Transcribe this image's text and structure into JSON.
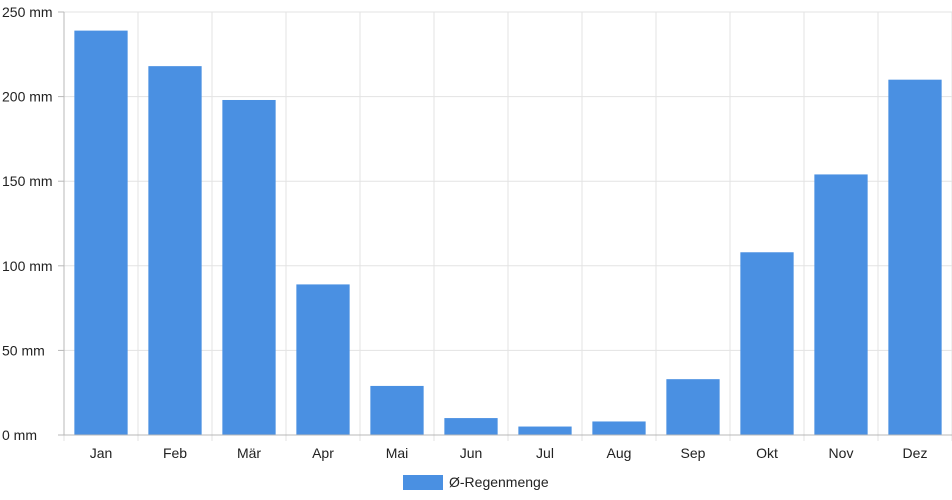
{
  "chart_data": {
    "type": "bar",
    "categories": [
      "Jan",
      "Feb",
      "Mär",
      "Apr",
      "Mai",
      "Jun",
      "Jul",
      "Aug",
      "Sep",
      "Okt",
      "Nov",
      "Dez"
    ],
    "series": [
      {
        "name": "Ø-Regenmenge",
        "values": [
          239,
          218,
          198,
          89,
          29,
          10,
          5,
          8,
          33,
          108,
          154,
          210
        ]
      }
    ],
    "y_ticks": [
      "0 mm",
      "50 mm",
      "100 mm",
      "150 mm",
      "200 mm",
      "250 mm"
    ],
    "ylim": [
      0,
      250
    ],
    "grid": true,
    "legend_position": "bottom",
    "colors": {
      "bar": "#4a90e2",
      "grid": "#e3e3e3",
      "axis": "#b8b8b8"
    }
  }
}
